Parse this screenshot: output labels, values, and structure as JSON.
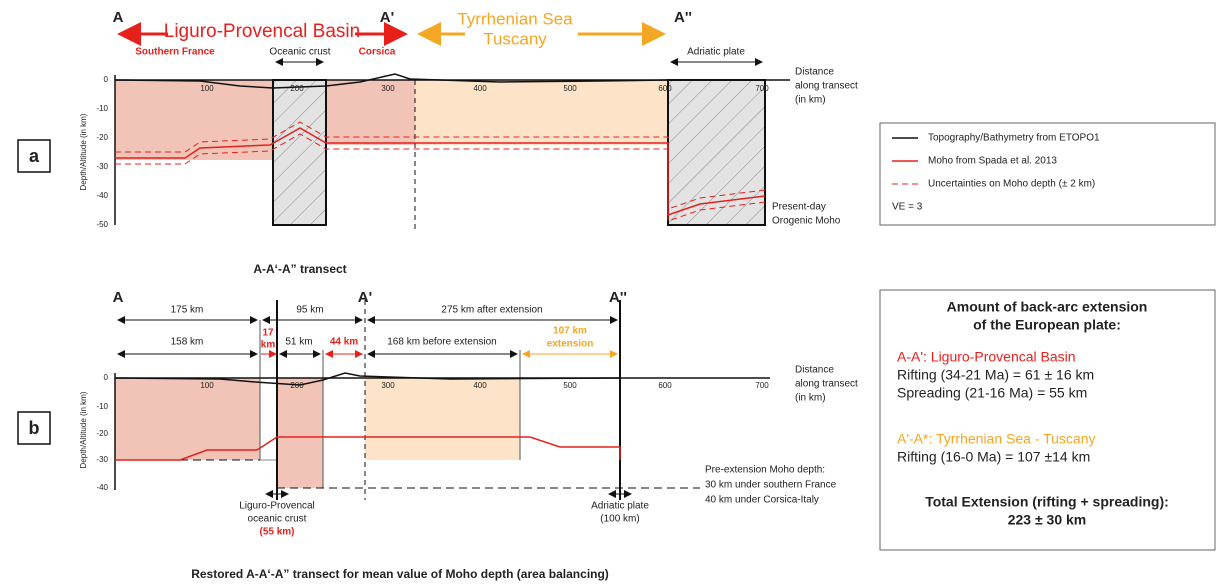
{
  "panel_a": {
    "label": "a",
    "points": [
      "A",
      "A'",
      "A''"
    ],
    "basin_title": "Liguro-Provencal Basin",
    "sea_title": [
      "Tyrrhenian Sea",
      "Tuscany"
    ],
    "regions": [
      "Southern France",
      "Oceanic crust",
      "Corsica",
      "Adriatic plate"
    ],
    "x_axis_label": [
      "Distance",
      "along transect",
      "(in km)"
    ],
    "y_axis_label": "Depth/Altitude (in km)",
    "xticks": [
      100,
      200,
      300,
      400,
      500,
      600,
      700
    ],
    "yticks": [
      0,
      -10,
      -20,
      -30,
      -40,
      -50
    ],
    "moho_note": [
      "Present-day",
      "Orogenic Moho"
    ],
    "caption": "A-A‘-A” transect"
  },
  "legend": {
    "items": [
      "Topography/Bathymetry from ETOPO1",
      "Moho from Spada et al. 2013",
      "Uncertainties on Moho depth (± 2 km)"
    ],
    "note": "VE = 3"
  },
  "panel_b": {
    "label": "b",
    "points": [
      "A",
      "A'",
      "A''"
    ],
    "top_spans": [
      "175 km",
      "95 km",
      "275 km after extension"
    ],
    "bottom_spans": [
      [
        "158 km"
      ],
      [
        "17",
        "km"
      ],
      [
        "51 km"
      ],
      [
        "44 km"
      ],
      [
        "168 km before extension"
      ],
      [
        "107 km",
        "extension"
      ]
    ],
    "x_axis_label": [
      "Distance",
      "along transect",
      "(in km)"
    ],
    "y_axis_label": "Depth/Altitude (in km)",
    "xticks": [
      100,
      200,
      300,
      400,
      500,
      600,
      700
    ],
    "yticks": [
      0,
      -10,
      -20,
      -30,
      -40
    ],
    "pre_extension_note": [
      "Pre-extension Moho depth:",
      "30 km under southern France",
      "40 km under Corsica-Italy"
    ],
    "oceanic_crust_note": [
      "Liguro-Provencal",
      "oceanic crust",
      "(55 km)"
    ],
    "adriatic_note": [
      "Adriatic plate",
      "(100 km)"
    ],
    "caption": "Restored A-A‘-A” transect for mean value of Moho depth (area balancing)"
  },
  "summary": {
    "title": [
      "Amount of back-arc extension",
      "of the European plate:"
    ],
    "basin_heading": "A-A': Liguro-Provencal Basin",
    "basin_lines": [
      "Rifting (34-21 Ma) = 61 ± 16 km",
      "Spreading (21-16 Ma) = 55 km"
    ],
    "sea_heading": "A'-A*: Tyrrhenian Sea - Tuscany",
    "sea_lines": [
      "Rifting (16-0 Ma) = 107 ±14 km"
    ],
    "total": [
      "Total Extension (rifting + spreading):",
      "223 ± 30 km"
    ]
  }
}
